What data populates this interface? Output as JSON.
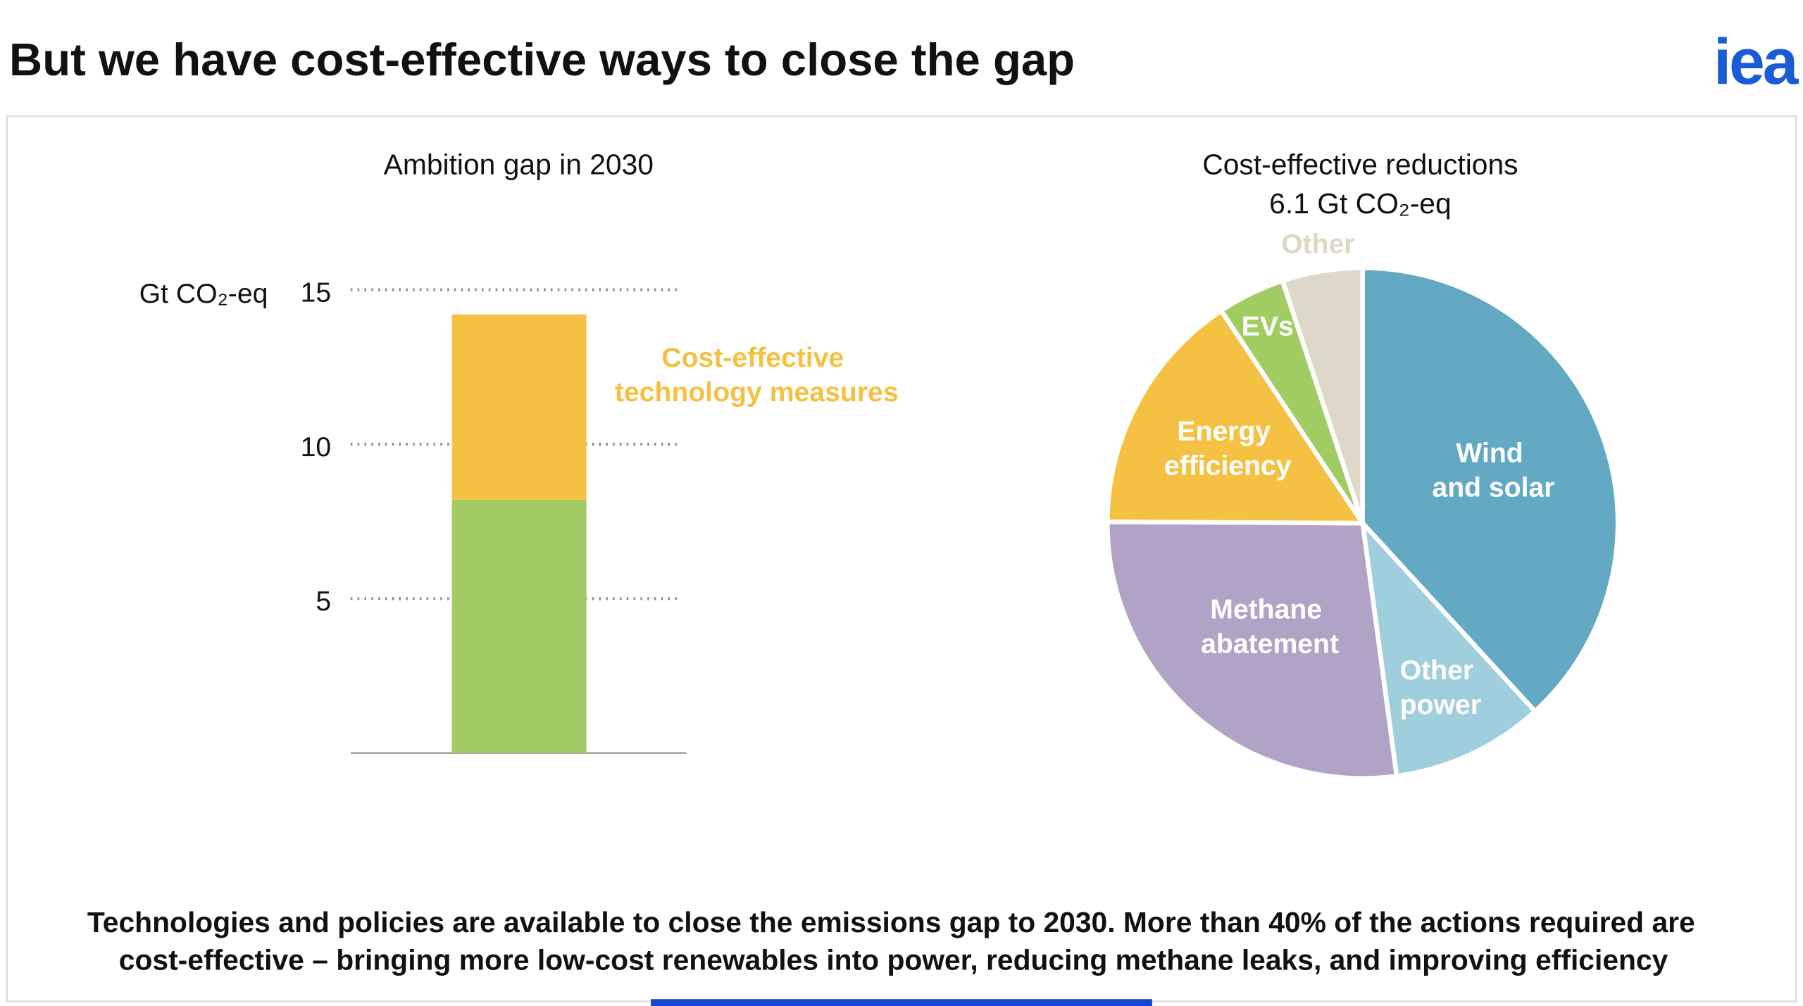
{
  "header": {
    "title": "But we have cost-effective ways to close the gap",
    "logo": "iea"
  },
  "chart_data": [
    {
      "type": "bar",
      "title": "Ambition gap in 2030",
      "y_label": "Gt CO₂-eq",
      "ylim": [
        0,
        15
      ],
      "yticks": [
        5,
        10,
        15
      ],
      "grid": true,
      "series": [
        {
          "color": "#a2cc63",
          "values": [
            8.2
          ]
        },
        {
          "name": "Cost-effective technology measures",
          "color": "#f5c142",
          "values": [
            6.0
          ]
        }
      ]
    },
    {
      "type": "pie",
      "title": "Cost-effective reductions",
      "subtitle": "6.1 Gt CO₂-eq",
      "categories": [
        "Wind and solar",
        "Other power",
        "Methane abatement",
        "Energy efficiency",
        "EVs",
        "Other"
      ],
      "values": [
        2.33,
        0.59,
        1.66,
        0.95,
        0.26,
        0.31
      ],
      "colors": [
        "#63a9c4",
        "#9fcedc",
        "#b0a3c5",
        "#f5c142",
        "#a0cc62",
        "#ded8c8"
      ]
    }
  ],
  "footer": {
    "lines": [
      "Technologies and policies are available to close the emissions gap to 2030. More than 40% of the actions required are",
      "cost-effective – bringing more low-cost renewables into power, reducing methane leaks, and improving efficiency"
    ]
  }
}
